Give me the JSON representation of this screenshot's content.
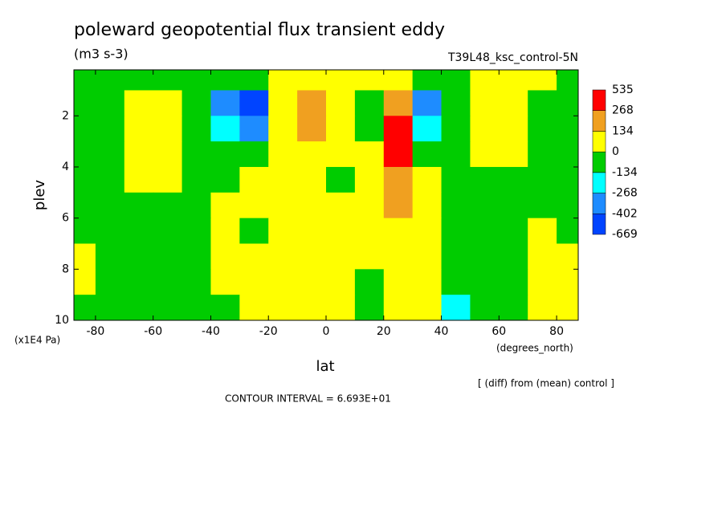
{
  "chart_data": {
    "type": "contour",
    "title": "poleward geopotential flux transient eddy",
    "units": "(m3 s-3)",
    "dataset": "T39L48_ksc_control-5N",
    "xlabel": "lat",
    "xunits": "(degrees_north)",
    "ylabel": "plev",
    "yunits": "(x1E4 Pa)",
    "note": "[ (diff) from (mean) control ]",
    "contour_interval": "CONTOUR INTERVAL = 6.693E+01",
    "xlim": [
      -87.5,
      87.5
    ],
    "ylim": [
      10,
      0.2
    ],
    "xticks": [
      -80,
      -60,
      -40,
      -20,
      0,
      20,
      40,
      60,
      80
    ],
    "yticks": [
      2,
      4,
      6,
      8,
      10
    ],
    "x": [
      -85,
      -75,
      -65,
      -55,
      -45,
      -35,
      -25,
      -15,
      -5,
      5,
      15,
      25,
      35,
      45,
      55,
      65,
      75,
      85
    ],
    "y": [
      0.5,
      1.5,
      2.5,
      3.5,
      4.5,
      5.5,
      6.5,
      7.5,
      8.5,
      9.5
    ],
    "z": [
      [
        -60,
        -60,
        -60,
        -60,
        -60,
        -60,
        -60,
        60,
        60,
        60,
        60,
        60,
        -60,
        -60,
        60,
        60,
        60,
        -60
      ],
      [
        -60,
        -60,
        60,
        60,
        -60,
        -330,
        -500,
        60,
        180,
        60,
        -60,
        180,
        -330,
        -60,
        60,
        60,
        -60,
        -60
      ],
      [
        -60,
        -60,
        60,
        60,
        -60,
        -200,
        -330,
        60,
        180,
        60,
        -60,
        350,
        -200,
        -60,
        60,
        60,
        -60,
        -60
      ],
      [
        -60,
        -60,
        60,
        60,
        -60,
        -60,
        -60,
        60,
        60,
        60,
        60,
        350,
        -60,
        -60,
        60,
        60,
        -60,
        -60
      ],
      [
        -60,
        -60,
        60,
        60,
        -60,
        -60,
        60,
        60,
        60,
        -60,
        60,
        180,
        60,
        -60,
        -60,
        -60,
        -60,
        -60
      ],
      [
        -60,
        -60,
        -60,
        -60,
        -60,
        60,
        60,
        60,
        60,
        60,
        60,
        180,
        60,
        -60,
        -60,
        -60,
        -60,
        -60
      ],
      [
        -60,
        -60,
        -60,
        -60,
        -60,
        60,
        -60,
        60,
        60,
        60,
        60,
        60,
        60,
        -60,
        -60,
        -60,
        60,
        -60
      ],
      [
        60,
        -60,
        -60,
        -60,
        -60,
        60,
        60,
        60,
        60,
        60,
        60,
        60,
        60,
        -60,
        -60,
        -60,
        60,
        60
      ],
      [
        60,
        -60,
        -60,
        -60,
        -60,
        60,
        60,
        60,
        60,
        60,
        -60,
        60,
        60,
        -60,
        -60,
        -60,
        60,
        60
      ],
      [
        -60,
        -60,
        -60,
        -60,
        -60,
        -60,
        60,
        60,
        60,
        60,
        -60,
        60,
        60,
        -200,
        -60,
        -60,
        60,
        60
      ]
    ],
    "levels": [
      -669,
      -402,
      -268,
      -134,
      0,
      134,
      268,
      535
    ],
    "colors": [
      "#0044ff",
      "#1e8cff",
      "#00ffff",
      "#00cc00",
      "#ffff00",
      "#f0a020",
      "#ff0000"
    ]
  }
}
